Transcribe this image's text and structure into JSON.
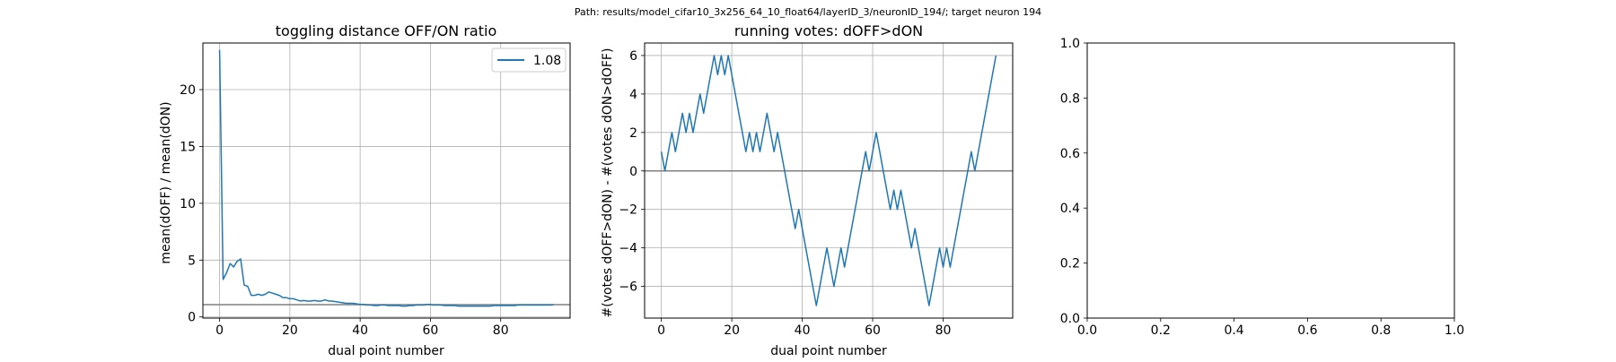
{
  "suptitle": "Path: results/model_cifar10_3x256_64_10_float64/layerID_3/neuronID_194/; target neuron 194",
  "colors": {
    "series": "#1f77b4",
    "reference_line": "#808080",
    "grid": "#b0b0b0"
  },
  "chart_data": [
    {
      "type": "line",
      "title": "toggling distance OFF/ON ratio",
      "xlabel": "dual point number",
      "ylabel": "mean(dOFF) / mean(dON)",
      "xlim": [
        -4.75,
        99.75
      ],
      "ylim": [
        -0.1,
        24.1
      ],
      "xticks": [
        0,
        20,
        40,
        60,
        80
      ],
      "yticks": [
        0,
        5,
        10,
        15,
        20
      ],
      "grid": true,
      "legend": {
        "placement": "upper right",
        "entries": [
          "1.08"
        ]
      },
      "hline": 1.08,
      "series": [
        {
          "name": "1.08",
          "x": [
            0,
            1,
            2,
            3,
            4,
            5,
            6,
            7,
            8,
            9,
            10,
            11,
            12,
            13,
            14,
            15,
            16,
            17,
            18,
            19,
            20,
            21,
            22,
            23,
            24,
            25,
            26,
            27,
            28,
            29,
            30,
            31,
            32,
            33,
            34,
            35,
            36,
            37,
            38,
            39,
            40,
            41,
            42,
            43,
            44,
            45,
            46,
            47,
            48,
            49,
            50,
            51,
            52,
            53,
            54,
            55,
            56,
            57,
            58,
            59,
            60,
            61,
            62,
            63,
            64,
            65,
            66,
            67,
            68,
            69,
            70,
            71,
            72,
            73,
            74,
            75,
            76,
            77,
            78,
            79,
            80,
            81,
            82,
            83,
            84,
            85,
            86,
            87,
            88,
            89,
            90,
            91,
            92,
            93,
            94,
            95
          ],
          "y": [
            23.5,
            3.3,
            3.9,
            4.7,
            4.4,
            4.9,
            5.1,
            2.8,
            2.7,
            1.9,
            1.9,
            2.0,
            1.9,
            2.0,
            2.2,
            2.1,
            2.0,
            1.9,
            1.7,
            1.7,
            1.6,
            1.6,
            1.5,
            1.4,
            1.45,
            1.4,
            1.4,
            1.45,
            1.4,
            1.4,
            1.5,
            1.4,
            1.4,
            1.35,
            1.3,
            1.25,
            1.2,
            1.2,
            1.2,
            1.15,
            1.1,
            1.1,
            1.05,
            1.05,
            1.0,
            1.0,
            1.05,
            1.05,
            1.0,
            1.0,
            1.0,
            1.0,
            0.95,
            0.95,
            1.0,
            1.0,
            1.05,
            1.05,
            1.05,
            1.1,
            1.1,
            1.05,
            1.05,
            1.05,
            1.0,
            1.0,
            1.0,
            1.0,
            0.95,
            0.95,
            0.95,
            0.95,
            0.95,
            0.95,
            0.95,
            0.95,
            0.95,
            0.95,
            1.0,
            1.0,
            1.0,
            1.0,
            1.0,
            1.0,
            1.0,
            1.05,
            1.05,
            1.05,
            1.05,
            1.05,
            1.05,
            1.05,
            1.05,
            1.05,
            1.05,
            1.08
          ]
        }
      ]
    },
    {
      "type": "line",
      "title": "running votes: dOFF>dON",
      "xlabel": "dual point number",
      "ylabel": "#(votes dOFF>dON) - #(votes dON>dOFF)",
      "xlim": [
        -4.75,
        99.75
      ],
      "ylim": [
        -7.65,
        6.65
      ],
      "xticks": [
        0,
        20,
        40,
        60,
        80
      ],
      "yticks": [
        -6,
        -4,
        -2,
        0,
        2,
        4,
        6
      ],
      "grid": true,
      "hline": 0,
      "series": [
        {
          "x": [
            0,
            1,
            2,
            3,
            4,
            5,
            6,
            7,
            8,
            9,
            10,
            11,
            12,
            13,
            14,
            15,
            16,
            17,
            18,
            19,
            20,
            21,
            22,
            23,
            24,
            25,
            26,
            27,
            28,
            29,
            30,
            31,
            32,
            33,
            34,
            35,
            36,
            37,
            38,
            39,
            40,
            41,
            42,
            43,
            44,
            45,
            46,
            47,
            48,
            49,
            50,
            51,
            52,
            53,
            54,
            55,
            56,
            57,
            58,
            59,
            60,
            61,
            62,
            63,
            64,
            65,
            66,
            67,
            68,
            69,
            70,
            71,
            72,
            73,
            74,
            75,
            76,
            77,
            78,
            79,
            80,
            81,
            82,
            83,
            84,
            85,
            86,
            87,
            88,
            89,
            90,
            91,
            92,
            93,
            94,
            95
          ],
          "y": [
            1,
            0,
            1,
            2,
            1,
            2,
            3,
            2,
            3,
            2,
            3,
            4,
            3,
            4,
            5,
            6,
            5,
            6,
            5,
            6,
            5,
            4,
            3,
            2,
            1,
            2,
            1,
            2,
            1,
            2,
            3,
            2,
            1,
            2,
            1,
            0,
            -1,
            -2,
            -3,
            -2,
            -3,
            -4,
            -5,
            -6,
            -7,
            -6,
            -5,
            -4,
            -5,
            -6,
            -5,
            -4,
            -5,
            -4,
            -3,
            -2,
            -1,
            0,
            1,
            0,
            1,
            2,
            1,
            0,
            -1,
            -2,
            -1,
            -2,
            -1,
            -2,
            -3,
            -4,
            -3,
            -4,
            -5,
            -6,
            -7,
            -6,
            -5,
            -4,
            -5,
            -4,
            -5,
            -4,
            -3,
            -2,
            -1,
            0,
            1,
            0,
            1,
            2,
            3,
            4,
            5,
            6
          ]
        }
      ]
    },
    {
      "type": "line",
      "title": "",
      "xlabel": "",
      "ylabel": "",
      "xlim": [
        0,
        1
      ],
      "ylim": [
        0,
        1
      ],
      "xticks": [
        0.0,
        0.2,
        0.4,
        0.6,
        0.8,
        1.0
      ],
      "yticks": [
        0.0,
        0.2,
        0.4,
        0.6,
        0.8,
        1.0
      ],
      "tick_format": "one_decimal",
      "grid": false,
      "series": []
    }
  ]
}
